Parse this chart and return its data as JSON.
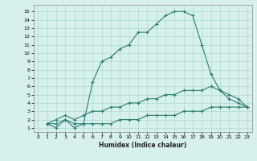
{
  "title": "",
  "xlabel": "Humidex (Indice chaleur)",
  "ylabel": "",
  "bg_color": "#d6f0ec",
  "line_color": "#2e7d6e",
  "grid_color": "#b0d8d2",
  "xlim": [
    -0.5,
    23.5
  ],
  "ylim": [
    0.5,
    15.8
  ],
  "xticks": [
    0,
    1,
    2,
    3,
    4,
    5,
    6,
    7,
    8,
    9,
    10,
    11,
    12,
    13,
    14,
    15,
    16,
    17,
    18,
    19,
    20,
    21,
    22,
    23
  ],
  "yticks": [
    1,
    2,
    3,
    4,
    5,
    6,
    7,
    8,
    9,
    10,
    11,
    12,
    13,
    14,
    15
  ],
  "curve1_x": [
    1,
    2,
    3,
    4,
    5,
    6,
    7,
    8,
    9,
    10,
    11,
    12,
    13,
    14,
    15,
    16,
    17,
    18,
    19,
    20,
    21,
    22,
    23
  ],
  "curve1_y": [
    1.5,
    1.0,
    2.0,
    1.0,
    1.5,
    6.5,
    9.0,
    9.5,
    10.5,
    11.0,
    12.5,
    12.5,
    13.5,
    14.5,
    15.0,
    15.0,
    14.5,
    11.0,
    7.5,
    5.5,
    4.5,
    4.0,
    3.5
  ],
  "curve2_x": [
    1,
    2,
    3,
    4,
    5,
    6,
    7,
    8,
    9,
    10,
    11,
    12,
    13,
    14,
    15,
    16,
    17,
    18,
    19,
    20,
    21,
    22,
    23
  ],
  "curve2_y": [
    1.5,
    2.0,
    2.5,
    2.0,
    2.5,
    3.0,
    3.0,
    3.5,
    3.5,
    4.0,
    4.0,
    4.5,
    4.5,
    5.0,
    5.0,
    5.5,
    5.5,
    5.5,
    6.0,
    5.5,
    5.0,
    4.5,
    3.5
  ],
  "curve3_x": [
    1,
    2,
    3,
    4,
    5,
    6,
    7,
    8,
    9,
    10,
    11,
    12,
    13,
    14,
    15,
    16,
    17,
    18,
    19,
    20,
    21,
    22,
    23
  ],
  "curve3_y": [
    1.5,
    1.5,
    2.0,
    1.5,
    1.5,
    1.5,
    1.5,
    1.5,
    2.0,
    2.0,
    2.0,
    2.5,
    2.5,
    2.5,
    2.5,
    3.0,
    3.0,
    3.0,
    3.5,
    3.5,
    3.5,
    3.5,
    3.5
  ]
}
